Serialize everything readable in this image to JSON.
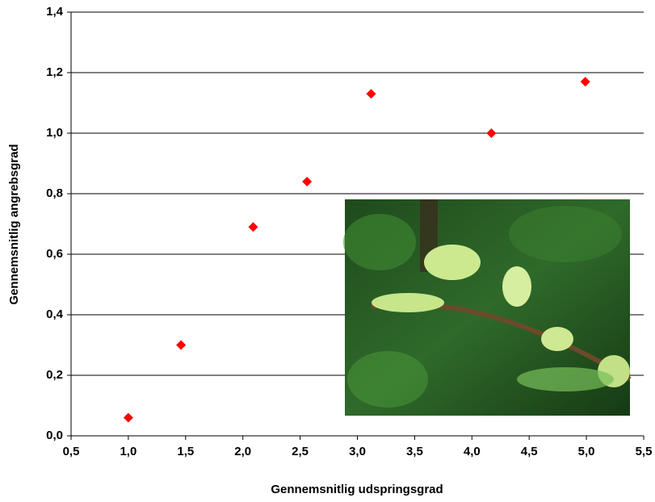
{
  "chart_data": {
    "type": "scatter",
    "x_label": "Gennemsnitlig udspringsgrad",
    "y_label": "Gennemsnitlig angrebsgrad",
    "x": [
      1.0,
      1.46,
      2.09,
      2.56,
      3.12,
      4.17,
      4.99
    ],
    "values": [
      0.06,
      0.3,
      0.69,
      0.84,
      1.13,
      1.0,
      1.17
    ],
    "color": "#ff0000",
    "xlim": [
      0.5,
      5.5
    ],
    "xticks": [
      {
        "value": 0.5,
        "label": "0,5"
      },
      {
        "value": 1.0,
        "label": "1,0"
      },
      {
        "value": 1.5,
        "label": "1,5"
      },
      {
        "value": 2.0,
        "label": "2,0"
      },
      {
        "value": 2.5,
        "label": "2,5"
      },
      {
        "value": 3.0,
        "label": "3,0"
      },
      {
        "value": 3.5,
        "label": "3,5"
      },
      {
        "value": 4.0,
        "label": "4,0"
      },
      {
        "value": 4.5,
        "label": "4,5"
      },
      {
        "value": 5.0,
        "label": "5,0"
      },
      {
        "value": 5.5,
        "label": "5,5"
      }
    ],
    "ylim": [
      0,
      1.4
    ],
    "yticks": [
      {
        "value": 0,
        "label": "0,0"
      },
      {
        "value": 0.2,
        "label": "0,2"
      },
      {
        "value": 0.4,
        "label": "0,4"
      },
      {
        "value": 0.6,
        "label": "0,6"
      },
      {
        "value": 0.8,
        "label": "0,8"
      },
      {
        "value": 1.0,
        "label": "1,0"
      },
      {
        "value": 1.2,
        "label": "1,2"
      },
      {
        "value": 1.4,
        "label": "1,4"
      }
    ],
    "grid": true
  }
}
